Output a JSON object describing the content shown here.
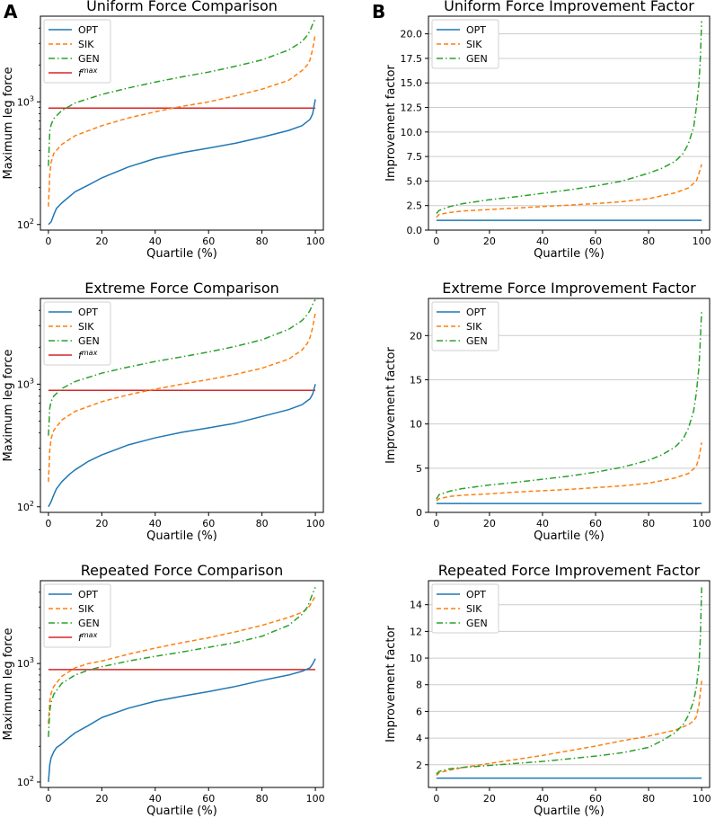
{
  "panel_letters": [
    "A",
    "B"
  ],
  "legend_labels": {
    "opt": "OPT",
    "sik": "SIK",
    "gen": "GEN",
    "fmax_base": "f",
    "fmax_sup": "max"
  },
  "colors": {
    "opt": "#1f77b4",
    "sik": "#ff7f0e",
    "gen": "#2ca02c",
    "fmax": "#d62728"
  },
  "chart_data": [
    {
      "id": "uniform-comparison",
      "type": "line",
      "scale": "log",
      "title": "Uniform Force Comparison",
      "xlabel": "Quartile (%)",
      "ylabel": "Maximum leg force",
      "xlim": [
        -3,
        103
      ],
      "ylim": [
        90,
        5000
      ],
      "xticks": [
        0,
        20,
        40,
        60,
        80,
        100
      ],
      "yticks": [
        {
          "v": 100,
          "base": "10",
          "exp": "2"
        },
        {
          "v": 1000,
          "base": "10",
          "exp": "3"
        }
      ],
      "fmax": 890,
      "series": [
        {
          "name": "OPT",
          "style": "solid",
          "x": [
            0,
            1,
            2,
            3,
            5,
            8,
            10,
            15,
            20,
            30,
            40,
            50,
            60,
            70,
            80,
            90,
            95,
            98,
            99,
            100
          ],
          "y": [
            100,
            105,
            120,
            135,
            150,
            170,
            185,
            210,
            240,
            295,
            345,
            385,
            420,
            460,
            515,
            585,
            640,
            720,
            800,
            1050
          ]
        },
        {
          "name": "SIK",
          "style": "dashed",
          "x": [
            0,
            0.5,
            1,
            2,
            5,
            10,
            20,
            30,
            40,
            50,
            60,
            70,
            80,
            90,
            95,
            97,
            98,
            99,
            100
          ],
          "y": [
            140,
            260,
            320,
            380,
            450,
            530,
            640,
            740,
            830,
            920,
            1000,
            1120,
            1270,
            1500,
            1800,
            2000,
            2200,
            2700,
            3600
          ]
        },
        {
          "name": "GEN",
          "style": "dashdot",
          "x": [
            0,
            0.5,
            1,
            2,
            5,
            10,
            20,
            30,
            40,
            50,
            60,
            70,
            80,
            90,
            95,
            97,
            98,
            99,
            100
          ],
          "y": [
            300,
            580,
            650,
            730,
            850,
            980,
            1150,
            1300,
            1450,
            1600,
            1750,
            1950,
            2200,
            2650,
            3100,
            3500,
            3800,
            4300,
            4800
          ]
        }
      ]
    },
    {
      "id": "uniform-improvement",
      "type": "line",
      "scale": "linear",
      "title": "Uniform Force Improvement Factor",
      "xlabel": "Quartile (%)",
      "ylabel": "Improvement factor",
      "xlim": [
        -3,
        103
      ],
      "ylim": [
        0,
        21.8
      ],
      "xticks": [
        0,
        20,
        40,
        60,
        80,
        100
      ],
      "yticks": [
        0.0,
        2.5,
        5.0,
        7.5,
        10.0,
        12.5,
        15.0,
        17.5,
        20.0
      ],
      "yfmt": 1,
      "series": [
        {
          "name": "OPT",
          "style": "solid",
          "x": [
            0,
            100
          ],
          "y": [
            1.0,
            1.0
          ]
        },
        {
          "name": "SIK",
          "style": "dashed",
          "x": [
            0,
            1,
            5,
            10,
            20,
            30,
            40,
            50,
            60,
            70,
            80,
            90,
            95,
            98,
            99,
            100
          ],
          "y": [
            1.3,
            1.6,
            1.8,
            1.95,
            2.1,
            2.25,
            2.4,
            2.55,
            2.7,
            2.9,
            3.2,
            3.8,
            4.3,
            5.0,
            5.8,
            6.7
          ]
        },
        {
          "name": "GEN",
          "style": "dashdot",
          "x": [
            0,
            1,
            5,
            10,
            20,
            30,
            40,
            50,
            60,
            70,
            80,
            85,
            90,
            93,
            95,
            97,
            98,
            99,
            99.5,
            100
          ],
          "y": [
            1.7,
            2.0,
            2.4,
            2.7,
            3.1,
            3.4,
            3.75,
            4.1,
            4.5,
            5.0,
            5.8,
            6.3,
            7.0,
            7.8,
            8.8,
            10.5,
            12.5,
            15.0,
            17.5,
            21.3
          ]
        }
      ]
    },
    {
      "id": "extreme-comparison",
      "type": "line",
      "scale": "log",
      "title": "Extreme Force Comparison",
      "xlabel": "Quartile (%)",
      "ylabel": "Maximum leg force",
      "xlim": [
        -3,
        103
      ],
      "ylim": [
        90,
        5000
      ],
      "xticks": [
        0,
        20,
        40,
        60,
        80,
        100
      ],
      "yticks": [
        {
          "v": 100,
          "base": "10",
          "exp": "2"
        },
        {
          "v": 1000,
          "base": "10",
          "exp": "3"
        }
      ],
      "fmax": 890,
      "series": [
        {
          "name": "OPT",
          "style": "solid",
          "x": [
            0,
            1,
            2,
            3,
            5,
            8,
            10,
            15,
            20,
            30,
            40,
            50,
            60,
            70,
            80,
            90,
            95,
            98,
            99,
            100
          ],
          "y": [
            100,
            110,
            125,
            140,
            160,
            185,
            200,
            235,
            265,
            320,
            365,
            405,
            440,
            480,
            545,
            620,
            680,
            760,
            830,
            1000
          ]
        },
        {
          "name": "SIK",
          "style": "dashed",
          "x": [
            0,
            0.5,
            1,
            2,
            5,
            10,
            20,
            30,
            40,
            50,
            60,
            70,
            80,
            90,
            95,
            97,
            98,
            99,
            100
          ],
          "y": [
            160,
            290,
            360,
            420,
            510,
            600,
            720,
            820,
            910,
            1000,
            1090,
            1200,
            1350,
            1600,
            1900,
            2150,
            2400,
            2900,
            3800
          ]
        },
        {
          "name": "GEN",
          "style": "dashdot",
          "x": [
            0,
            0.5,
            1,
            2,
            5,
            10,
            20,
            30,
            40,
            50,
            60,
            70,
            80,
            90,
            95,
            97,
            98,
            99,
            100
          ],
          "y": [
            380,
            640,
            720,
            800,
            920,
            1050,
            1230,
            1380,
            1530,
            1670,
            1830,
            2030,
            2300,
            2800,
            3300,
            3700,
            4000,
            4500,
            4900
          ]
        }
      ]
    },
    {
      "id": "extreme-improvement",
      "type": "line",
      "scale": "linear",
      "title": "Extreme Force Improvement Factor",
      "xlabel": "Quartile (%)",
      "ylabel": "Improvement factor",
      "xlim": [
        -3,
        103
      ],
      "ylim": [
        0,
        24.2
      ],
      "xticks": [
        0,
        20,
        40,
        60,
        80,
        100
      ],
      "yticks": [
        0,
        5,
        10,
        15,
        20
      ],
      "yfmt": 0,
      "series": [
        {
          "name": "OPT",
          "style": "solid",
          "x": [
            0,
            100
          ],
          "y": [
            1.0,
            1.0
          ]
        },
        {
          "name": "SIK",
          "style": "dashed",
          "x": [
            0,
            1,
            5,
            10,
            20,
            30,
            40,
            50,
            60,
            70,
            80,
            90,
            95,
            98,
            99,
            100
          ],
          "y": [
            1.3,
            1.55,
            1.8,
            1.95,
            2.1,
            2.3,
            2.45,
            2.6,
            2.8,
            3.0,
            3.3,
            3.9,
            4.4,
            5.2,
            6.2,
            7.9
          ]
        },
        {
          "name": "GEN",
          "style": "dashdot",
          "x": [
            0,
            1,
            5,
            10,
            20,
            30,
            40,
            50,
            60,
            70,
            80,
            85,
            90,
            93,
            95,
            97,
            98,
            99,
            99.5,
            100
          ],
          "y": [
            1.5,
            2.0,
            2.4,
            2.7,
            3.1,
            3.4,
            3.75,
            4.1,
            4.55,
            5.1,
            5.9,
            6.5,
            7.4,
            8.3,
            9.5,
            11.5,
            13.5,
            16.5,
            19.5,
            22.9
          ]
        }
      ]
    },
    {
      "id": "repeated-comparison",
      "type": "line",
      "scale": "log",
      "title": "Repeated Force Comparison",
      "xlabel": "Quartile (%)",
      "ylabel": "Maximum leg force",
      "xlim": [
        -3,
        103
      ],
      "ylim": [
        90,
        5000
      ],
      "xticks": [
        0,
        20,
        40,
        60,
        80,
        100
      ],
      "yticks": [
        {
          "v": 100,
          "base": "10",
          "exp": "2"
        },
        {
          "v": 1000,
          "base": "10",
          "exp": "3"
        }
      ],
      "fmax": 890,
      "series": [
        {
          "name": "OPT",
          "style": "solid",
          "x": [
            0,
            0.5,
            1,
            2,
            3,
            5,
            8,
            10,
            15,
            20,
            30,
            40,
            50,
            60,
            70,
            80,
            90,
            95,
            98,
            99,
            100
          ],
          "y": [
            100,
            140,
            160,
            180,
            195,
            210,
            240,
            260,
            300,
            350,
            420,
            480,
            530,
            580,
            640,
            720,
            800,
            860,
            920,
            990,
            1100
          ]
        },
        {
          "name": "SIK",
          "style": "dashed",
          "x": [
            0,
            0.5,
            1,
            2,
            5,
            10,
            15,
            20,
            30,
            40,
            50,
            60,
            70,
            80,
            90,
            95,
            97,
            98,
            99,
            100
          ],
          "y": [
            310,
            480,
            560,
            640,
            780,
            920,
            1000,
            1050,
            1200,
            1350,
            1500,
            1650,
            1850,
            2100,
            2450,
            2700,
            2900,
            3100,
            3400,
            3700
          ]
        },
        {
          "name": "GEN",
          "style": "dashdot",
          "x": [
            0,
            0.5,
            1,
            2,
            5,
            10,
            15,
            20,
            30,
            40,
            50,
            60,
            70,
            80,
            90,
            95,
            97,
            98,
            99,
            100
          ],
          "y": [
            240,
            400,
            470,
            550,
            680,
            800,
            880,
            940,
            1050,
            1150,
            1250,
            1370,
            1500,
            1700,
            2100,
            2600,
            3000,
            3400,
            3900,
            4400
          ]
        }
      ]
    },
    {
      "id": "repeated-improvement",
      "type": "line",
      "scale": "linear",
      "title": "Repeated Force Improvement Factor",
      "xlabel": "Quartile (%)",
      "ylabel": "Improvement factor",
      "xlim": [
        -3,
        103
      ],
      "ylim": [
        0.3,
        15.8
      ],
      "xticks": [
        0,
        20,
        40,
        60,
        80,
        100
      ],
      "yticks": [
        2,
        4,
        6,
        8,
        10,
        12,
        14
      ],
      "yfmt": 0,
      "series": [
        {
          "name": "OPT",
          "style": "solid",
          "x": [
            0,
            100
          ],
          "y": [
            1.0,
            1.0
          ]
        },
        {
          "name": "SIK",
          "style": "dashed",
          "x": [
            0,
            1,
            5,
            10,
            20,
            30,
            40,
            50,
            60,
            70,
            80,
            90,
            95,
            97,
            98,
            99,
            100
          ],
          "y": [
            1.2,
            1.4,
            1.6,
            1.8,
            2.1,
            2.4,
            2.7,
            3.05,
            3.4,
            3.8,
            4.15,
            4.6,
            5.0,
            5.3,
            5.6,
            6.5,
            8.3
          ]
        },
        {
          "name": "GEN",
          "style": "dashdot",
          "x": [
            0,
            1,
            5,
            10,
            20,
            30,
            40,
            50,
            60,
            70,
            80,
            85,
            90,
            93,
            95,
            97,
            98,
            99,
            99.5,
            100
          ],
          "y": [
            1.3,
            1.5,
            1.7,
            1.8,
            1.95,
            2.1,
            2.25,
            2.45,
            2.65,
            2.9,
            3.3,
            3.8,
            4.4,
            5.0,
            5.7,
            6.8,
            7.8,
            9.5,
            11.5,
            15.3
          ]
        }
      ]
    }
  ]
}
